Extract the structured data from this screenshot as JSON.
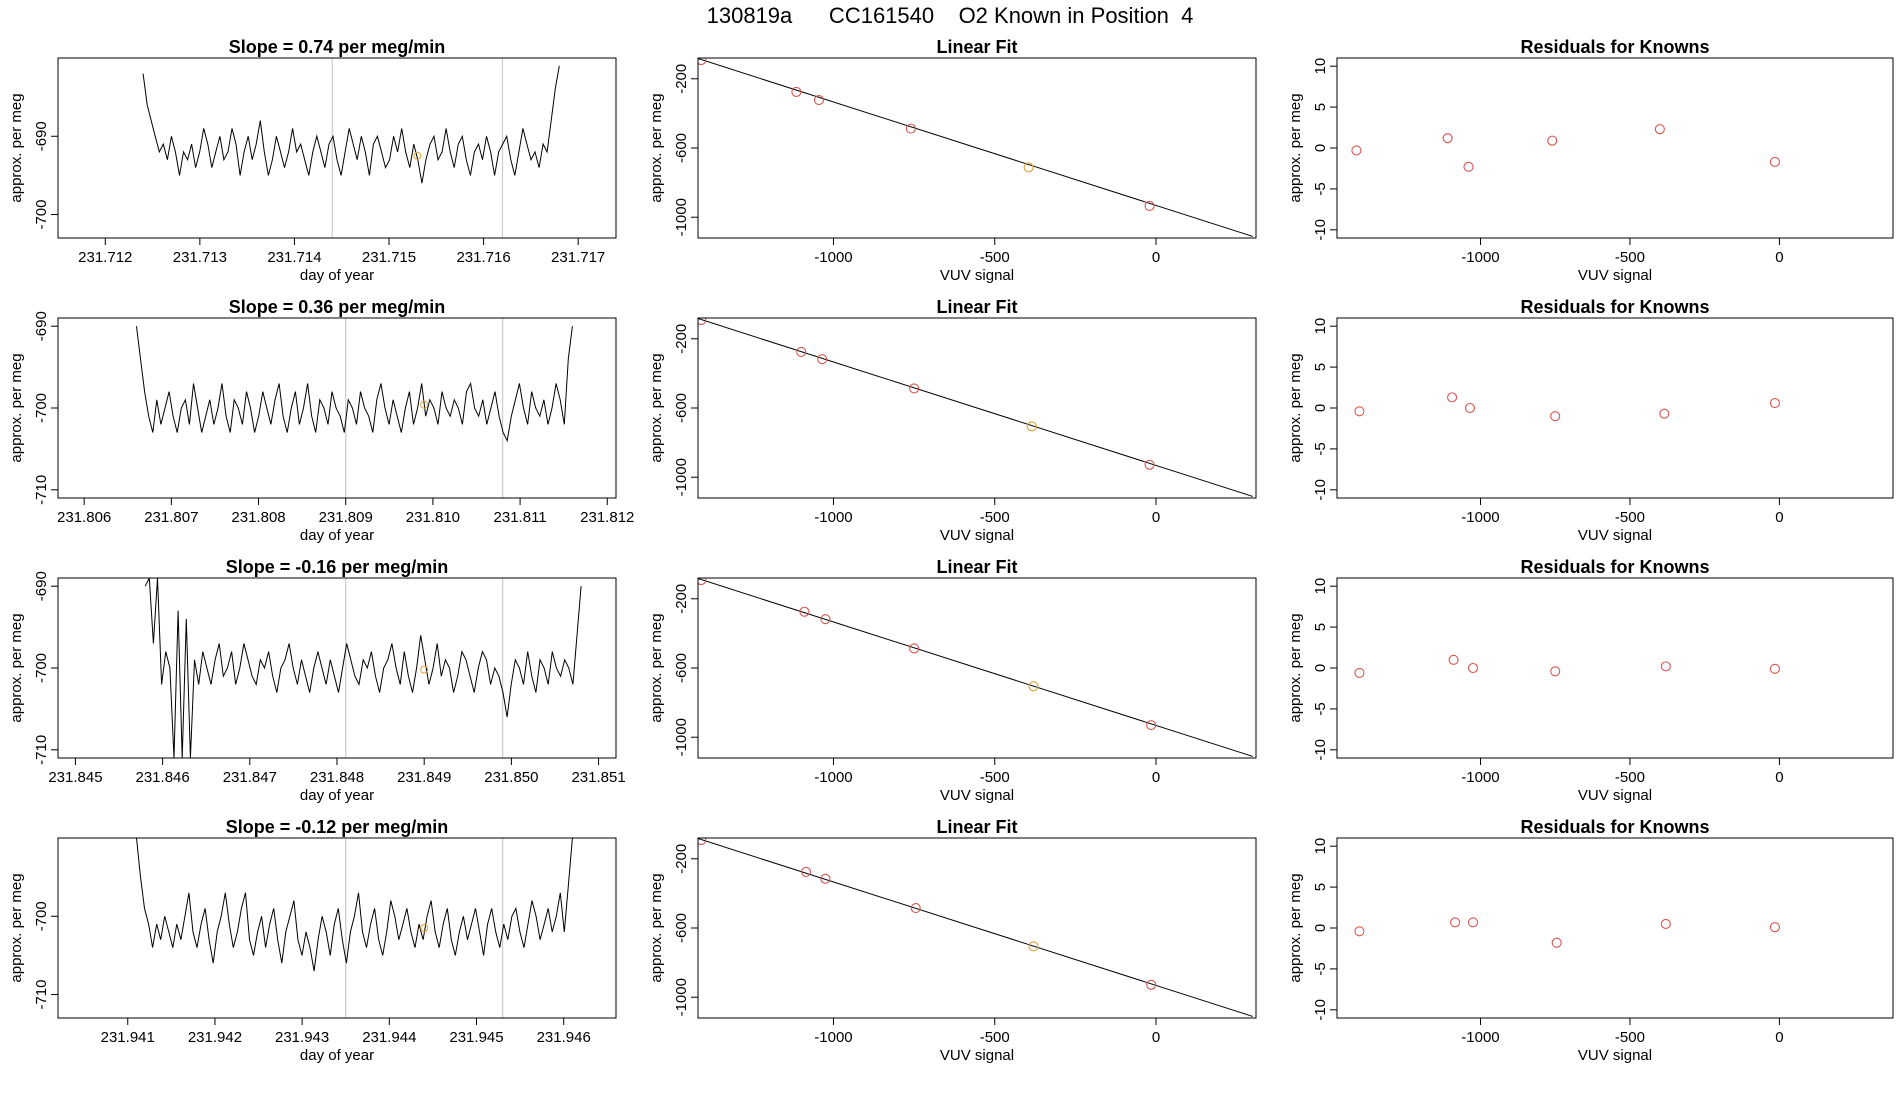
{
  "page_title": "130819a      CC161540    O2 Known in Position  4",
  "colors": {
    "line": "#000000",
    "frame": "#000000",
    "known_point": "#d9534f",
    "current_point": "#e0a030",
    "guide_line": "#cccccc"
  },
  "chart_data": [
    {
      "type": "line",
      "row": 0,
      "col": 0,
      "title": "Slope =  0.74  per meg/min",
      "xlabel": "day of year",
      "ylabel": "approx. per meg",
      "xlim": [
        231.7115,
        231.7174
      ],
      "ylim": [
        -703,
        -680
      ],
      "xticks": [
        231.712,
        231.713,
        231.714,
        231.715,
        231.716,
        231.717
      ],
      "xtick_labels": [
        "231.712",
        "231.713",
        "231.714",
        "231.715",
        "231.716",
        "231.717"
      ],
      "yticks": [
        -690,
        -700
      ],
      "ytick_labels": [
        "-690",
        "-700"
      ],
      "vlines": [
        231.7144,
        231.7162
      ],
      "start": 231.7124,
      "end": 231.7168,
      "series_values": [
        -682,
        -686,
        -688,
        -690,
        -692,
        -691,
        -693,
        -690,
        -692,
        -695,
        -692,
        -693,
        -691,
        -694,
        -692,
        -689,
        -691,
        -694,
        -692,
        -690,
        -693,
        -692,
        -689,
        -691,
        -695,
        -692,
        -690,
        -693,
        -691,
        -688,
        -692,
        -695,
        -693,
        -690,
        -692,
        -694,
        -692,
        -689,
        -692,
        -691,
        -693,
        -695,
        -692,
        -690,
        -692,
        -694,
        -691,
        -690,
        -693,
        -695,
        -692,
        -689,
        -691,
        -693,
        -690,
        -692,
        -695,
        -691,
        -690,
        -692,
        -694,
        -693,
        -690,
        -692,
        -689,
        -692,
        -694,
        -691,
        -693,
        -696,
        -693,
        -691,
        -690,
        -693,
        -692,
        -689,
        -692,
        -694,
        -691,
        -690,
        -693,
        -695,
        -692,
        -691,
        -693,
        -690,
        -692,
        -695,
        -692,
        -691,
        -690,
        -693,
        -695,
        -692,
        -689,
        -691,
        -693,
        -692,
        -694,
        -691,
        -692,
        -688,
        -684,
        -681
      ],
      "highlight_point": {
        "x": 231.7153,
        "y": -692.5
      }
    },
    {
      "type": "scatter",
      "row": 0,
      "col": 1,
      "title": "Linear Fit",
      "xlabel": "VUV signal",
      "ylabel": "approx. per meg",
      "xlim": [
        -1420,
        310
      ],
      "ylim": [
        -1120,
        -80
      ],
      "xticks": [
        -1000,
        -500,
        0
      ],
      "xtick_labels": [
        "-1000",
        "-500",
        "0"
      ],
      "yticks": [
        -200,
        -600,
        -1000
      ],
      "ytick_labels": [
        "-200",
        "-600",
        "-1000"
      ],
      "fit_line": {
        "x": [
          -1420,
          300
        ],
        "y": [
          -83,
          -1111
        ]
      },
      "points": [
        {
          "x": -1410,
          "y": -92,
          "kind": "known"
        },
        {
          "x": -1115,
          "y": -276,
          "kind": "known"
        },
        {
          "x": -1045,
          "y": -323,
          "kind": "known"
        },
        {
          "x": -760,
          "y": -488,
          "kind": "known"
        },
        {
          "x": -395,
          "y": -712,
          "kind": "current"
        },
        {
          "x": -20,
          "y": -935,
          "kind": "known"
        }
      ]
    },
    {
      "type": "scatter",
      "row": 0,
      "col": 2,
      "title": "Residuals for Knowns",
      "xlabel": "VUV signal",
      "ylabel": "approx. per meg",
      "xlim": [
        -1480,
        380
      ],
      "ylim": [
        -11,
        11
      ],
      "xticks": [
        -1000,
        -500,
        0
      ],
      "xtick_labels": [
        "-1000",
        "-500",
        "0"
      ],
      "yticks": [
        10,
        5,
        0,
        -5,
        -10
      ],
      "ytick_labels": [
        "10",
        "5",
        "0",
        "-5",
        "-10"
      ],
      "points": [
        {
          "x": -1415,
          "y": -0.3,
          "kind": "known"
        },
        {
          "x": -1110,
          "y": 1.2,
          "kind": "known"
        },
        {
          "x": -1040,
          "y": -2.3,
          "kind": "known"
        },
        {
          "x": -760,
          "y": 0.9,
          "kind": "known"
        },
        {
          "x": -400,
          "y": 2.3,
          "kind": "known"
        },
        {
          "x": -15,
          "y": -1.7,
          "kind": "known"
        }
      ]
    },
    {
      "type": "line",
      "row": 1,
      "col": 0,
      "title": "Slope =  0.36  per meg/min",
      "xlabel": "day of year",
      "ylabel": "approx. per meg",
      "xlim": [
        231.8057,
        231.8121
      ],
      "ylim": [
        -711,
        -689
      ],
      "xticks": [
        231.806,
        231.807,
        231.808,
        231.809,
        231.81,
        231.811,
        231.812
      ],
      "xtick_labels": [
        "231.806",
        "231.807",
        "231.808",
        "231.809",
        "231.810",
        "231.811",
        "231.812"
      ],
      "yticks": [
        -690,
        -700,
        -710
      ],
      "ytick_labels": [
        "-690",
        "-700",
        "-710"
      ],
      "vlines": [
        231.809,
        231.8108
      ],
      "start": 231.8066,
      "end": 231.8116,
      "series_values": [
        -690,
        -694,
        -698,
        -701,
        -703,
        -699,
        -702,
        -700,
        -698,
        -701,
        -703,
        -700,
        -699,
        -702,
        -697,
        -700,
        -703,
        -701,
        -699,
        -702,
        -700,
        -697,
        -701,
        -703,
        -699,
        -700,
        -702,
        -698,
        -700,
        -703,
        -701,
        -698,
        -700,
        -702,
        -699,
        -697,
        -701,
        -703,
        -700,
        -698,
        -702,
        -700,
        -697,
        -701,
        -703,
        -699,
        -700,
        -702,
        -698,
        -700,
        -701,
        -703,
        -699,
        -700,
        -702,
        -698,
        -700,
        -701,
        -703,
        -699,
        -697,
        -700,
        -702,
        -699,
        -701,
        -703,
        -700,
        -698,
        -702,
        -700,
        -697,
        -701,
        -699,
        -700,
        -702,
        -698,
        -700,
        -701,
        -699,
        -700,
        -702,
        -698,
        -697,
        -700,
        -701,
        -699,
        -702,
        -700,
        -698,
        -701,
        -703,
        -704,
        -701,
        -699,
        -697,
        -700,
        -702,
        -698,
        -700,
        -701,
        -699,
        -702,
        -700,
        -697,
        -699,
        -702,
        -694,
        -690
      ],
      "highlight_point": {
        "x": 231.8099,
        "y": -699.6
      }
    },
    {
      "type": "scatter",
      "row": 1,
      "col": 1,
      "title": "Linear Fit",
      "xlabel": "VUV signal",
      "ylabel": "approx. per meg",
      "xlim": [
        -1420,
        310
      ],
      "ylim": [
        -1120,
        -80
      ],
      "xticks": [
        -1000,
        -500,
        0
      ],
      "xtick_labels": [
        "-1000",
        "-500",
        "0"
      ],
      "yticks": [
        -200,
        -600,
        -1000
      ],
      "ytick_labels": [
        "-200",
        "-600",
        "-1000"
      ],
      "fit_line": {
        "x": [
          -1420,
          300
        ],
        "y": [
          -83,
          -1111
        ]
      },
      "points": [
        {
          "x": -1410,
          "y": -92,
          "kind": "known"
        },
        {
          "x": -1100,
          "y": -276,
          "kind": "known"
        },
        {
          "x": -1035,
          "y": -318,
          "kind": "known"
        },
        {
          "x": -750,
          "y": -487,
          "kind": "known"
        },
        {
          "x": -385,
          "y": -706,
          "kind": "current"
        },
        {
          "x": -20,
          "y": -928,
          "kind": "known"
        }
      ]
    },
    {
      "type": "scatter",
      "row": 1,
      "col": 2,
      "title": "Residuals for Knowns",
      "xlabel": "VUV signal",
      "ylabel": "approx. per meg",
      "xlim": [
        -1480,
        380
      ],
      "ylim": [
        -11,
        11
      ],
      "xticks": [
        -1000,
        -500,
        0
      ],
      "xtick_labels": [
        "-1000",
        "-500",
        "0"
      ],
      "yticks": [
        10,
        5,
        0,
        -5,
        -10
      ],
      "ytick_labels": [
        "10",
        "5",
        "0",
        "-5",
        "-10"
      ],
      "points": [
        {
          "x": -1405,
          "y": -0.4,
          "kind": "known"
        },
        {
          "x": -1095,
          "y": 1.3,
          "kind": "known"
        },
        {
          "x": -1035,
          "y": 0.0,
          "kind": "known"
        },
        {
          "x": -750,
          "y": -1.0,
          "kind": "known"
        },
        {
          "x": -385,
          "y": -0.7,
          "kind": "known"
        },
        {
          "x": -15,
          "y": 0.6,
          "kind": "known"
        }
      ]
    },
    {
      "type": "line",
      "row": 2,
      "col": 0,
      "title": "Slope =  -0.16  per meg/min",
      "xlabel": "day of year",
      "ylabel": "approx. per meg",
      "xlim": [
        231.8448,
        231.8512
      ],
      "ylim": [
        -711,
        -689
      ],
      "xticks": [
        231.845,
        231.846,
        231.847,
        231.848,
        231.849,
        231.85,
        231.851
      ],
      "xtick_labels": [
        "231.845",
        "231.846",
        "231.847",
        "231.848",
        "231.849",
        "231.850",
        "231.851"
      ],
      "yticks": [
        -690,
        -700,
        -710
      ],
      "ytick_labels": [
        "-690",
        "-700",
        "-710"
      ],
      "vlines": [
        231.8481,
        231.8499
      ],
      "start": 231.8458,
      "end": 231.8508,
      "series_values": [
        -690,
        -689,
        -697,
        -689,
        -702,
        -698,
        -700,
        -711,
        -693,
        -711,
        -694,
        -711,
        -699,
        -702,
        -698,
        -700,
        -702,
        -699,
        -697,
        -701,
        -700,
        -698,
        -702,
        -700,
        -697,
        -699,
        -701,
        -702,
        -699,
        -700,
        -698,
        -701,
        -703,
        -700,
        -699,
        -697,
        -700,
        -702,
        -699,
        -701,
        -703,
        -700,
        -698,
        -700,
        -702,
        -699,
        -701,
        -703,
        -700,
        -697,
        -699,
        -701,
        -702,
        -699,
        -700,
        -698,
        -701,
        -703,
        -700,
        -699,
        -697,
        -700,
        -702,
        -698,
        -701,
        -703,
        -700,
        -696,
        -699,
        -702,
        -700,
        -697,
        -701,
        -699,
        -700,
        -703,
        -701,
        -698,
        -699,
        -701,
        -703,
        -700,
        -698,
        -699,
        -702,
        -700,
        -701,
        -703,
        -706,
        -702,
        -699,
        -700,
        -702,
        -698,
        -701,
        -703,
        -699,
        -700,
        -702,
        -698,
        -700,
        -701,
        -699,
        -700,
        -702,
        -696,
        -690
      ],
      "highlight_point": {
        "x": 231.849,
        "y": -700.2
      }
    },
    {
      "type": "scatter",
      "row": 2,
      "col": 1,
      "title": "Linear Fit",
      "xlabel": "VUV signal",
      "ylabel": "approx. per meg",
      "xlim": [
        -1420,
        310
      ],
      "ylim": [
        -1120,
        -80
      ],
      "xticks": [
        -1000,
        -500,
        0
      ],
      "xtick_labels": [
        "-1000",
        "-500",
        "0"
      ],
      "yticks": [
        -200,
        -600,
        -1000
      ],
      "ytick_labels": [
        "-200",
        "-600",
        "-1000"
      ],
      "fit_line": {
        "x": [
          -1420,
          300
        ],
        "y": [
          -83,
          -1111
        ]
      },
      "points": [
        {
          "x": -1410,
          "y": -92,
          "kind": "known"
        },
        {
          "x": -1090,
          "y": -275,
          "kind": "known"
        },
        {
          "x": -1025,
          "y": -318,
          "kind": "known"
        },
        {
          "x": -750,
          "y": -487,
          "kind": "known"
        },
        {
          "x": -380,
          "y": -705,
          "kind": "current"
        },
        {
          "x": -15,
          "y": -930,
          "kind": "known"
        }
      ]
    },
    {
      "type": "scatter",
      "row": 2,
      "col": 2,
      "title": "Residuals for Knowns",
      "xlabel": "VUV signal",
      "ylabel": "approx. per meg",
      "xlim": [
        -1480,
        380
      ],
      "ylim": [
        -11,
        11
      ],
      "xticks": [
        -1000,
        -500,
        0
      ],
      "xtick_labels": [
        "-1000",
        "-500",
        "0"
      ],
      "yticks": [
        10,
        5,
        0,
        -5,
        -10
      ],
      "ytick_labels": [
        "10",
        "5",
        "0",
        "-5",
        "-10"
      ],
      "points": [
        {
          "x": -1405,
          "y": -0.6,
          "kind": "known"
        },
        {
          "x": -1090,
          "y": 1.0,
          "kind": "known"
        },
        {
          "x": -1025,
          "y": 0.0,
          "kind": "known"
        },
        {
          "x": -750,
          "y": -0.4,
          "kind": "known"
        },
        {
          "x": -380,
          "y": 0.2,
          "kind": "known"
        },
        {
          "x": -15,
          "y": -0.1,
          "kind": "known"
        }
      ]
    },
    {
      "type": "line",
      "row": 3,
      "col": 0,
      "title": "Slope =  -0.12  per meg/min",
      "xlabel": "day of year",
      "ylabel": "approx. per meg",
      "xlim": [
        231.9402,
        231.9466
      ],
      "ylim": [
        -713,
        -690
      ],
      "xticks": [
        231.941,
        231.942,
        231.943,
        231.944,
        231.945,
        231.946
      ],
      "xtick_labels": [
        "231.941",
        "231.942",
        "231.943",
        "231.944",
        "231.945",
        "231.946"
      ],
      "yticks": [
        -700,
        -710
      ],
      "ytick_labels": [
        "-700",
        "-710"
      ],
      "vlines": [
        231.9435,
        231.9453
      ],
      "start": 231.9411,
      "end": 231.9461,
      "series_values": [
        -690,
        -695,
        -699,
        -701,
        -704,
        -701,
        -703,
        -700,
        -702,
        -704,
        -701,
        -703,
        -700,
        -697,
        -702,
        -704,
        -701,
        -699,
        -703,
        -706,
        -702,
        -700,
        -697,
        -701,
        -704,
        -702,
        -699,
        -697,
        -703,
        -705,
        -702,
        -700,
        -704,
        -701,
        -699,
        -703,
        -706,
        -702,
        -700,
        -698,
        -703,
        -705,
        -702,
        -704,
        -707,
        -703,
        -700,
        -702,
        -705,
        -701,
        -699,
        -703,
        -706,
        -702,
        -700,
        -697,
        -702,
        -704,
        -701,
        -699,
        -703,
        -705,
        -702,
        -698,
        -700,
        -703,
        -701,
        -699,
        -702,
        -704,
        -701,
        -703,
        -700,
        -698,
        -702,
        -704,
        -701,
        -699,
        -703,
        -705,
        -702,
        -700,
        -703,
        -701,
        -699,
        -702,
        -705,
        -701,
        -699,
        -702,
        -704,
        -701,
        -703,
        -700,
        -699,
        -702,
        -704,
        -701,
        -698,
        -700,
        -703,
        -701,
        -699,
        -702,
        -700,
        -697,
        -702,
        -696,
        -690
      ],
      "highlight_point": {
        "x": 231.9444,
        "y": -701.5
      }
    },
    {
      "type": "scatter",
      "row": 3,
      "col": 1,
      "title": "Linear Fit",
      "xlabel": "VUV signal",
      "ylabel": "approx. per meg",
      "xlim": [
        -1420,
        310
      ],
      "ylim": [
        -1120,
        -80
      ],
      "xticks": [
        -1000,
        -500,
        0
      ],
      "xtick_labels": [
        "-1000",
        "-500",
        "0"
      ],
      "yticks": [
        -200,
        -600,
        -1000
      ],
      "ytick_labels": [
        "-200",
        "-600",
        "-1000"
      ],
      "fit_line": {
        "x": [
          -1420,
          300
        ],
        "y": [
          -83,
          -1111
        ]
      },
      "points": [
        {
          "x": -1410,
          "y": -92,
          "kind": "known"
        },
        {
          "x": -1085,
          "y": -276,
          "kind": "known"
        },
        {
          "x": -1025,
          "y": -316,
          "kind": "known"
        },
        {
          "x": -745,
          "y": -485,
          "kind": "known"
        },
        {
          "x": -380,
          "y": -706,
          "kind": "current"
        },
        {
          "x": -15,
          "y": -928,
          "kind": "known"
        }
      ]
    },
    {
      "type": "scatter",
      "row": 3,
      "col": 2,
      "title": "Residuals for Knowns",
      "xlabel": "VUV signal",
      "ylabel": "approx. per meg",
      "xlim": [
        -1480,
        380
      ],
      "ylim": [
        -11,
        11
      ],
      "xticks": [
        -1000,
        -500,
        0
      ],
      "xtick_labels": [
        "-1000",
        "-500",
        "0"
      ],
      "yticks": [
        10,
        5,
        0,
        -5,
        -10
      ],
      "ytick_labels": [
        "10",
        "5",
        "0",
        "-5",
        "-10"
      ],
      "points": [
        {
          "x": -1405,
          "y": -0.4,
          "kind": "known"
        },
        {
          "x": -1085,
          "y": 0.7,
          "kind": "known"
        },
        {
          "x": -1025,
          "y": 0.7,
          "kind": "known"
        },
        {
          "x": -745,
          "y": -1.8,
          "kind": "known"
        },
        {
          "x": -380,
          "y": 0.5,
          "kind": "known"
        },
        {
          "x": -15,
          "y": 0.1,
          "kind": "known"
        }
      ]
    }
  ]
}
